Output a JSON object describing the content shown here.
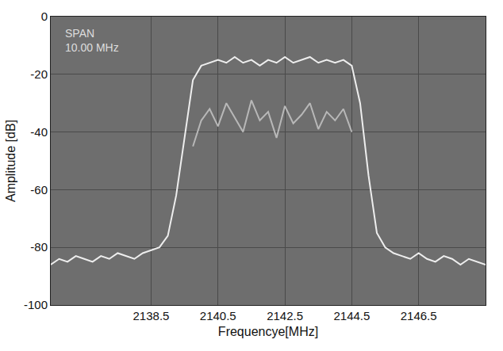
{
  "chart_data": {
    "type": "line",
    "x_label": "Frequencye[MHz]",
    "y_label": "Amplitude [dB]",
    "annotations": [
      "SPAN",
      "10.00 MHz"
    ],
    "x": [
      2135.5,
      2135.75,
      2136,
      2136.25,
      2136.5,
      2136.75,
      2137,
      2137.25,
      2137.5,
      2137.75,
      2138,
      2138.25,
      2138.5,
      2138.75,
      2139,
      2139.25,
      2139.5,
      2139.75,
      2140,
      2140.25,
      2140.5,
      2140.75,
      2141,
      2141.25,
      2141.5,
      2141.75,
      2142,
      2142.25,
      2142.5,
      2142.75,
      2143,
      2143.25,
      2143.5,
      2143.75,
      2144,
      2144.25,
      2144.5,
      2144.75,
      2145,
      2145.25,
      2145.5,
      2145.75,
      2146,
      2146.25,
      2146.5,
      2146.75,
      2147,
      2147.25,
      2147.5,
      2147.75,
      2148,
      2148.25,
      2148.5
    ],
    "series": [
      {
        "color": "#eeeeee",
        "values": [
          -86,
          -84,
          -85,
          -83,
          -84,
          -85,
          -83,
          -84,
          -82,
          -83,
          -84,
          -82,
          -81,
          -80,
          -76,
          -62,
          -42,
          -22,
          -17,
          -16,
          -15,
          -16,
          -14,
          -16,
          -15,
          -17,
          -15,
          -16,
          -14,
          -16,
          -15,
          -14,
          -16,
          -15,
          -16,
          -15,
          -17,
          -30,
          -55,
          -75,
          -80,
          -82,
          -83,
          -84,
          -82,
          -84,
          -85,
          -83,
          -84,
          -86,
          -84,
          -85,
          -86
        ]
      },
      {
        "color": "#b8b8b8",
        "values": [
          null,
          null,
          null,
          null,
          null,
          null,
          null,
          null,
          null,
          null,
          null,
          null,
          null,
          null,
          null,
          null,
          null,
          -45,
          -36,
          -32,
          -38,
          -30,
          -35,
          -40,
          -29,
          -36,
          -33,
          -42,
          -31,
          -37,
          -34,
          -30,
          -39,
          -33,
          -36,
          -32,
          -40,
          null,
          null,
          null,
          null,
          null,
          null,
          null,
          null,
          null,
          null,
          null,
          null,
          null,
          null,
          null,
          null
        ]
      }
    ],
    "xlim": [
      2135.5,
      2148.5
    ],
    "xticks": [
      2138.5,
      2140.5,
      2142.5,
      2144.5,
      2146.5
    ],
    "ylim": [
      -100,
      0
    ],
    "yticks": [
      -100,
      -80,
      -60,
      -40,
      -20,
      0
    ],
    "grid": true
  }
}
